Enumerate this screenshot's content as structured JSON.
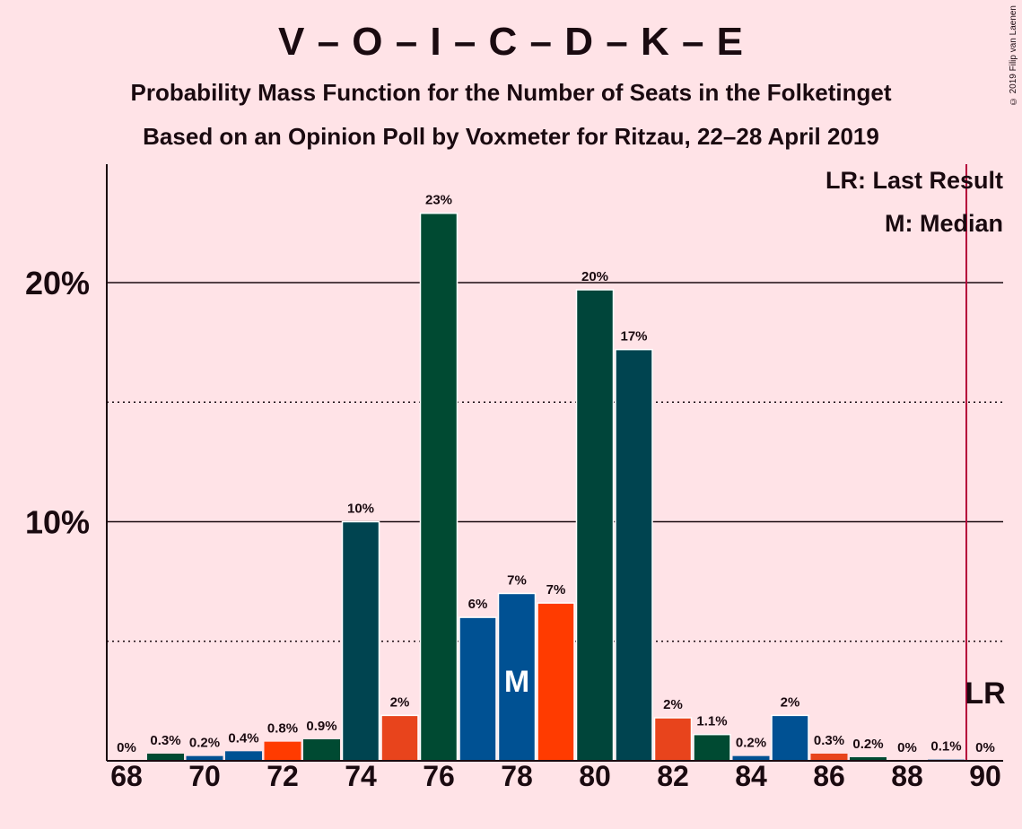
{
  "chart_data": {
    "type": "bar",
    "title": "V – O – I – C – D – K – E",
    "subtitle_1": "Probability Mass Function for the Number of Seats in the Folketinget",
    "subtitle_2": "Based on an Opinion Poll by Voxmeter for Ritzau, 22–28 April 2019",
    "copyright": "© 2019 Filip van Laenen",
    "legend": {
      "last_result": "LR: Last Result",
      "median": "M: Median"
    },
    "xlabel": "",
    "ylabel": "",
    "ylim": [
      0,
      25
    ],
    "xlim": [
      68,
      90
    ],
    "y_ticks": [
      {
        "value": 10,
        "label": "10%"
      },
      {
        "value": 20,
        "label": "20%"
      }
    ],
    "minor_gridlines": [
      5,
      15
    ],
    "x_ticks": [
      "68",
      "70",
      "72",
      "74",
      "76",
      "78",
      "80",
      "82",
      "84",
      "86",
      "88",
      "90"
    ],
    "median_seat": 78,
    "median_label": "M",
    "last_result_seat": 90,
    "last_result_label": "LR",
    "colors": {
      "background": "#ffe3e7",
      "dark_green": "#004a32",
      "dark_teal": "#004450",
      "blue": "#005193",
      "orange_red": "#e8441c",
      "bright_red": "#ff3b00",
      "last_result_line": "#b5003a"
    },
    "bars": [
      {
        "seat": 68,
        "value": 0.0,
        "label": "0%",
        "color": "#004a32"
      },
      {
        "seat": 69,
        "value": 0.3,
        "label": "0.3%",
        "color": "#004a32"
      },
      {
        "seat": 70,
        "value": 0.2,
        "label": "0.2%",
        "color": "#005193"
      },
      {
        "seat": 71,
        "value": 0.4,
        "label": "0.4%",
        "color": "#005193"
      },
      {
        "seat": 72,
        "value": 0.8,
        "label": "0.8%",
        "color": "#ff3b00"
      },
      {
        "seat": 73,
        "value": 0.9,
        "label": "0.9%",
        "color": "#004a32"
      },
      {
        "seat": 74,
        "value": 10.0,
        "label": "10%",
        "color": "#004450"
      },
      {
        "seat": 75,
        "value": 1.9,
        "label": "2%",
        "color": "#e8441c"
      },
      {
        "seat": 76,
        "value": 22.9,
        "label": "23%",
        "color": "#004a32"
      },
      {
        "seat": 77,
        "value": 6.0,
        "label": "6%",
        "color": "#005193"
      },
      {
        "seat": 78,
        "value": 7.0,
        "label": "7%",
        "color": "#005193"
      },
      {
        "seat": 79,
        "value": 6.6,
        "label": "7%",
        "color": "#ff3b00"
      },
      {
        "seat": 80,
        "value": 19.7,
        "label": "20%",
        "color": "#00453a"
      },
      {
        "seat": 81,
        "value": 17.2,
        "label": "17%",
        "color": "#004450"
      },
      {
        "seat": 82,
        "value": 1.8,
        "label": "2%",
        "color": "#e8441c"
      },
      {
        "seat": 83,
        "value": 1.1,
        "label": "1.1%",
        "color": "#004a32"
      },
      {
        "seat": 84,
        "value": 0.2,
        "label": "0.2%",
        "color": "#005193"
      },
      {
        "seat": 85,
        "value": 1.9,
        "label": "2%",
        "color": "#005193"
      },
      {
        "seat": 86,
        "value": 0.3,
        "label": "0.3%",
        "color": "#e8441c"
      },
      {
        "seat": 87,
        "value": 0.15,
        "label": "0.2%",
        "color": "#004a32"
      },
      {
        "seat": 88,
        "value": 0.0,
        "label": "0%",
        "color": "#004a32"
      },
      {
        "seat": 89,
        "value": 0.05,
        "label": "0.1%",
        "color": "#005193"
      },
      {
        "seat": 90,
        "value": 0.0,
        "label": "0%",
        "color": "#004a32"
      }
    ]
  }
}
